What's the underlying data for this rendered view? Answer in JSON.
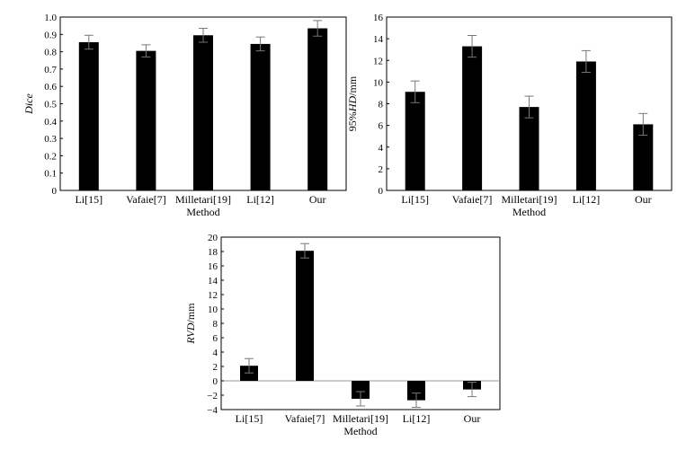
{
  "chart_data": [
    {
      "type": "bar",
      "categories": [
        "Li[15]",
        "Vafaie[7]",
        "Milletari[19]",
        "Li[12]",
        "Our"
      ],
      "values": [
        0.855,
        0.805,
        0.895,
        0.845,
        0.935
      ],
      "errors": [
        0.04,
        0.035,
        0.04,
        0.04,
        0.045
      ],
      "xlabel": "Method",
      "ylabel": "Dice",
      "ylim": [
        0,
        1.0
      ],
      "yticks": [
        0,
        0.1,
        0.2,
        0.3,
        0.4,
        0.5,
        0.6,
        0.7,
        0.8,
        0.9,
        1.0
      ],
      "yticklabels": [
        "0",
        "0.1",
        "0.2",
        "0.3",
        "0.4",
        "0.5",
        "0.6",
        "0.7",
        "0.8",
        "0.9",
        "1.0"
      ],
      "grid": false,
      "bar_color": "#000000"
    },
    {
      "type": "bar",
      "categories": [
        "Li[15]",
        "Vafaie[7]",
        "Milletari[19]",
        "Li[12]",
        "Our"
      ],
      "values": [
        9.1,
        13.3,
        7.7,
        11.9,
        6.1
      ],
      "errors": [
        1.0,
        1.0,
        1.0,
        1.0,
        1.0
      ],
      "xlabel": "Method",
      "ylabel_prefix": "95%",
      "ylabel_italic": "HD",
      "ylabel_suffix": "/mm",
      "ylim": [
        0,
        16
      ],
      "yticks": [
        0,
        2,
        4,
        6,
        8,
        10,
        12,
        14,
        16
      ],
      "yticklabels": [
        "0",
        "2",
        "4",
        "6",
        "8",
        "10",
        "12",
        "14",
        "16"
      ],
      "grid": false,
      "bar_color": "#000000"
    },
    {
      "type": "bar",
      "categories": [
        "Li[15]",
        "Vafaie[7]",
        "Milletari[19]",
        "Li[12]",
        "Our"
      ],
      "values": [
        2.1,
        18.1,
        -2.5,
        -2.7,
        -1.2
      ],
      "errors": [
        1.0,
        1.0,
        1.0,
        1.0,
        1.0
      ],
      "xlabel": "Method",
      "ylabel_italic": "RVD",
      "ylabel_suffix": "/mm",
      "ylim": [
        -4,
        20
      ],
      "yticks": [
        -4,
        -2,
        0,
        2,
        4,
        6,
        8,
        10,
        12,
        14,
        16,
        18,
        20
      ],
      "yticklabels": [
        "−4",
        "−2",
        "0",
        "2",
        "4",
        "6",
        "8",
        "10",
        "12",
        "14",
        "16",
        "18",
        "20"
      ],
      "grid": false,
      "bar_color": "#000000"
    }
  ]
}
